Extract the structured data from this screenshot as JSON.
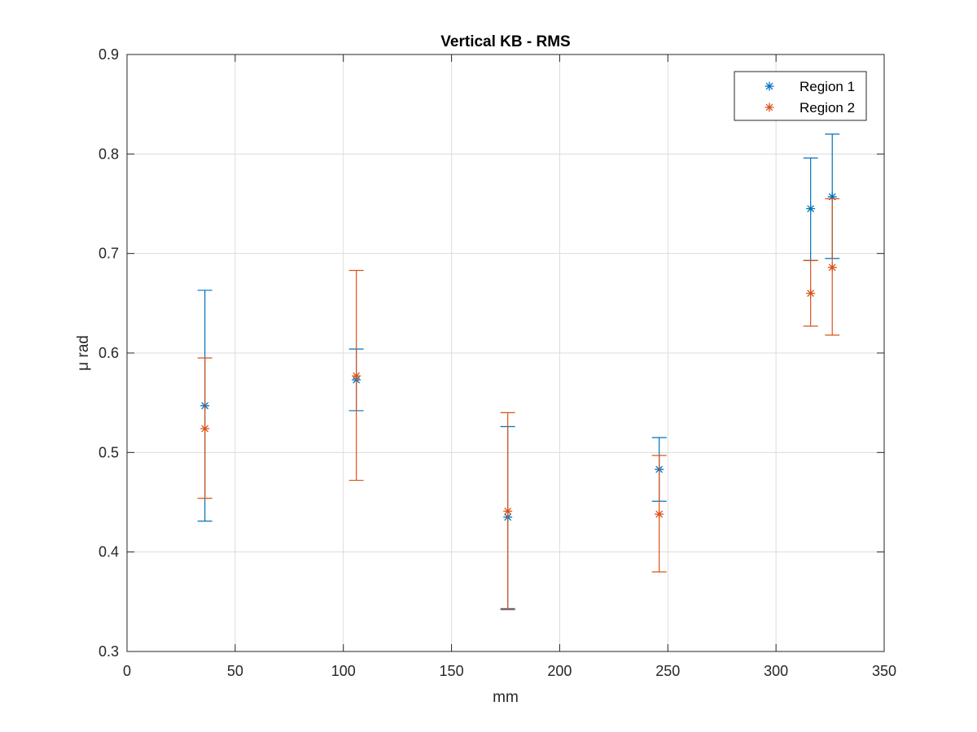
{
  "chart_data": {
    "type": "scatter",
    "title": "Vertical KB -  RMS",
    "xlabel": "mm",
    "ylabel": "μ rad",
    "xlim": [
      0,
      350
    ],
    "ylim": [
      0.3,
      0.9
    ],
    "xticks": [
      0,
      50,
      100,
      150,
      200,
      250,
      300,
      350
    ],
    "yticks": [
      0.3,
      0.4,
      0.5,
      0.6,
      0.7,
      0.8,
      0.9
    ],
    "xtick_labels": [
      "0",
      "50",
      "100",
      "150",
      "200",
      "250",
      "300",
      "350"
    ],
    "ytick_labels": [
      "0.3",
      "0.4",
      "0.5",
      "0.6",
      "0.7",
      "0.8",
      "0.9"
    ],
    "grid": true,
    "legend_position": "top-right",
    "marker": "asterisk",
    "error_bars": true,
    "series": [
      {
        "name": "Region 1",
        "color": "#0072BD",
        "points": [
          {
            "x": 36,
            "y": 0.547,
            "low": 0.431,
            "high": 0.663
          },
          {
            "x": 106,
            "y": 0.573,
            "low": 0.542,
            "high": 0.604
          },
          {
            "x": 176,
            "y": 0.435,
            "low": 0.343,
            "high": 0.526
          },
          {
            "x": 246,
            "y": 0.483,
            "low": 0.451,
            "high": 0.515
          },
          {
            "x": 316,
            "y": 0.745,
            "low": 0.693,
            "high": 0.796
          },
          {
            "x": 326,
            "y": 0.757,
            "low": 0.695,
            "high": 0.82
          }
        ]
      },
      {
        "name": "Region 2",
        "color": "#D95319",
        "points": [
          {
            "x": 36,
            "y": 0.524,
            "low": 0.454,
            "high": 0.595
          },
          {
            "x": 106,
            "y": 0.577,
            "low": 0.472,
            "high": 0.683
          },
          {
            "x": 176,
            "y": 0.441,
            "low": 0.342,
            "high": 0.54
          },
          {
            "x": 246,
            "y": 0.438,
            "low": 0.38,
            "high": 0.497
          },
          {
            "x": 316,
            "y": 0.66,
            "low": 0.627,
            "high": 0.693
          },
          {
            "x": 326,
            "y": 0.686,
            "low": 0.618,
            "high": 0.755
          }
        ]
      }
    ]
  }
}
